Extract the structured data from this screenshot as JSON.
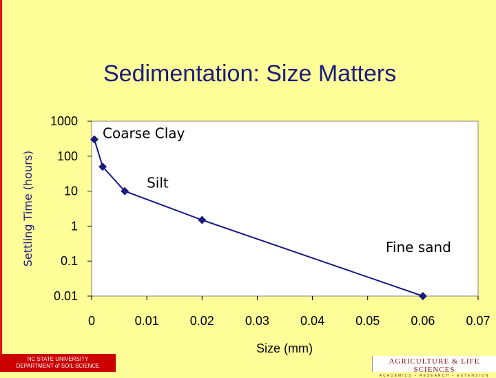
{
  "slide": {
    "title": "Sedimentation:  Size Matters",
    "footer_left_line1": "NC STATE UNIVERSITY",
    "footer_left_line2": "DEPARTMENT of SOIL SCIENCE",
    "footer_right_logo": "AGRICULTURE & LIFE SCIENCES",
    "footer_right_sub": "ACADEMICS • RESEARCH • EXTENSION"
  },
  "colors": {
    "background": "#ffff99",
    "accent": "#1a1a80",
    "frame": "#ee1111",
    "footer": "#cc0000"
  },
  "chart_data": {
    "type": "line",
    "title": "",
    "xlabel": "Size (mm)",
    "ylabel": "Settling Time (hours)",
    "yscale": "log",
    "xlim": [
      0,
      0.07
    ],
    "ylim": [
      0.01,
      1000
    ],
    "xticks": [
      0,
      0.01,
      0.02,
      0.03,
      0.04,
      0.05,
      0.06,
      0.07
    ],
    "xtick_labels": [
      "0",
      "0.01",
      "0.02",
      "0.03",
      "0.04",
      "0.05",
      "0.06",
      "0.07"
    ],
    "yticks": [
      0.01,
      0.1,
      1,
      10,
      100,
      1000
    ],
    "ytick_labels": [
      "0.01",
      "0.1",
      "1",
      "10",
      "100",
      "1000"
    ],
    "grid": false,
    "legend": "none",
    "series": [
      {
        "x": [
          0.0005,
          0.002,
          0.006,
          0.02,
          0.06
        ],
        "y": [
          300,
          50,
          10,
          1.5,
          0.01
        ],
        "color": "#1a1a80",
        "marker": "diamond"
      }
    ],
    "annotations": [
      {
        "text": "Coarse Clay",
        "x": 0.0005,
        "y": 300,
        "placement": "right"
      },
      {
        "text": "Silt",
        "x": 0.006,
        "y": 10,
        "placement": "above-right"
      },
      {
        "text": "Fine sand",
        "x": 0.06,
        "y": 0.01,
        "placement": "above-right"
      }
    ]
  }
}
